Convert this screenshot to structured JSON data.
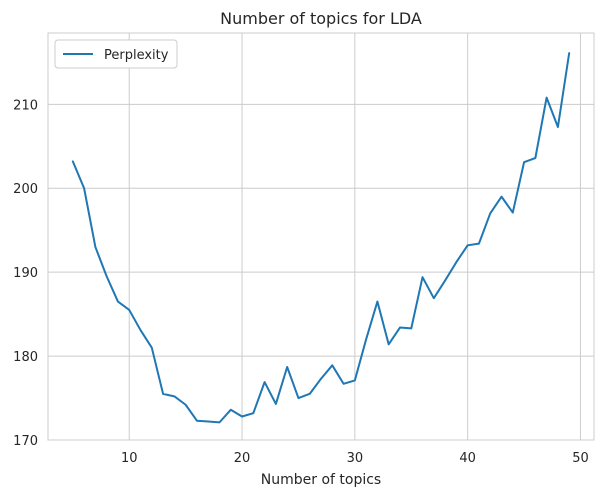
{
  "chart_data": {
    "type": "line",
    "title": "Number of topics for LDA",
    "xlabel": "Number of topics",
    "ylabel": "",
    "xlim": [
      2.8,
      51.2
    ],
    "ylim": [
      170,
      218.5
    ],
    "xticks": [
      10,
      20,
      30,
      40,
      50
    ],
    "yticks": [
      170,
      180,
      190,
      200,
      210
    ],
    "grid": true,
    "legend": "top-left",
    "series": [
      {
        "name": "Perplexity",
        "color": "#1f77b4",
        "x": [
          5,
          6,
          7,
          8,
          9,
          10,
          11,
          12,
          13,
          14,
          15,
          16,
          17,
          18,
          19,
          20,
          21,
          22,
          23,
          24,
          25,
          26,
          27,
          28,
          29,
          30,
          31,
          32,
          33,
          34,
          35,
          36,
          37,
          38,
          39,
          40,
          41,
          42,
          43,
          44,
          45,
          46,
          47,
          48,
          49
        ],
        "values": [
          203.2,
          200.0,
          193.0,
          189.5,
          186.5,
          185.5,
          183.1,
          181.0,
          175.5,
          175.2,
          174.2,
          172.3,
          172.2,
          172.1,
          173.6,
          172.8,
          173.2,
          176.9,
          174.3,
          178.7,
          175.0,
          175.5,
          177.3,
          178.9,
          176.7,
          177.1,
          182.0,
          186.5,
          181.4,
          183.4,
          183.3,
          189.4,
          186.9,
          189.0,
          191.2,
          193.2,
          193.4,
          197.0,
          199.0,
          197.1,
          203.1,
          203.6,
          210.8,
          207.3,
          216.1
        ]
      }
    ]
  }
}
